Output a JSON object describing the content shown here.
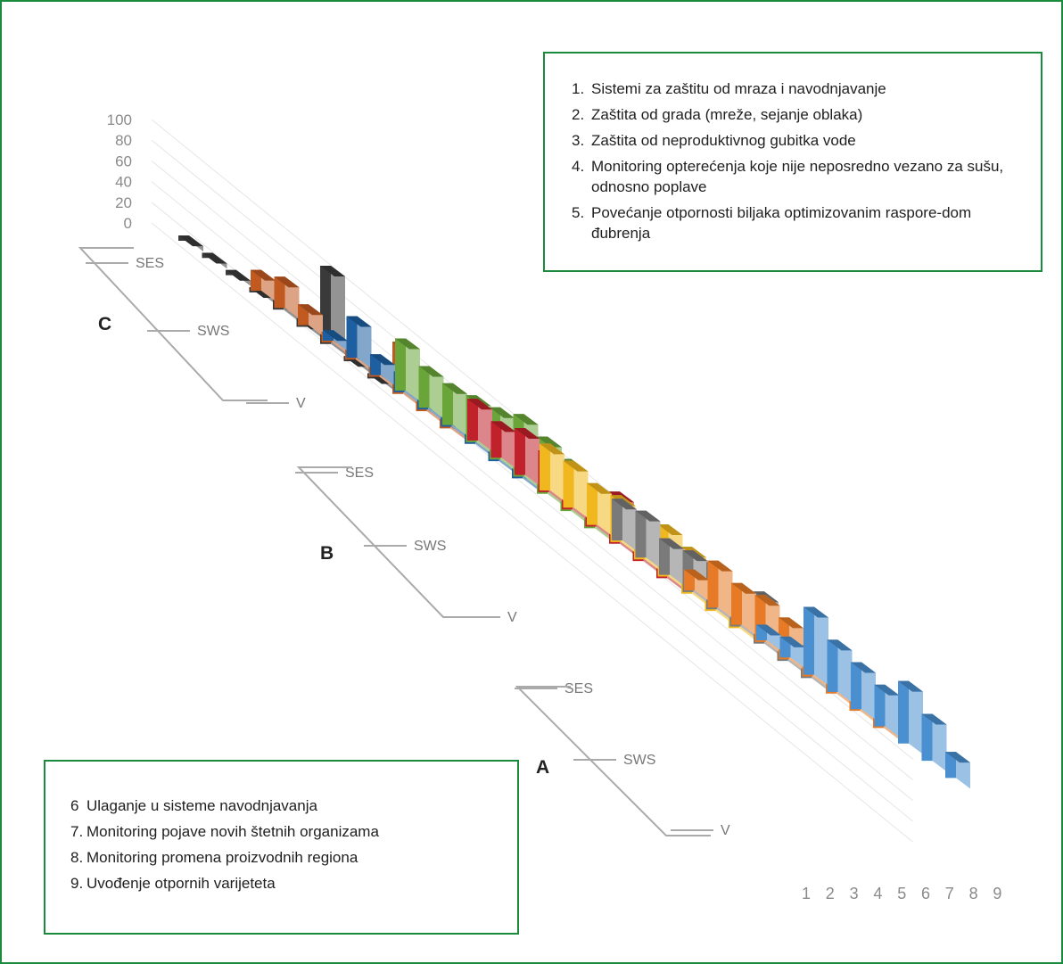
{
  "colors": {
    "frame": "#1a8a3c",
    "C_SES": "#3a3a3a",
    "C_SWS": "#c05a20",
    "C_V": "#1d5fa0",
    "B_SES": "#6aa53a",
    "B_SWS": "#c0212a",
    "B_V": "#f0b81e",
    "A_SES": "#7a7a7a",
    "A_SWS": "#e67a26",
    "A_V": "#4a8fd0"
  },
  "legend_top": [
    {
      "num": "1.",
      "text": "Sistemi za zaštitu od mraza i navodnjavanje"
    },
    {
      "num": "2.",
      "text": "Zaštita od grada (mreže, sejanje oblaka)"
    },
    {
      "num": "3.",
      "text": "Zaštita od neproduktivnog gubitka vode"
    },
    {
      "num": "4.",
      "text": "Monitoring opterećenja koje nije neposredno vezano za sušu, odnosno poplave"
    },
    {
      "num": "5.",
      "text": "Povećanje otpornosti biljaka optimizovanim raspore-dom đubrenja"
    }
  ],
  "legend_bottom": [
    {
      "num": "6",
      "text": "Ulaganje u sisteme navodnjavanja"
    },
    {
      "num": "7.",
      "text": "Monitoring pojave novih štetnih organizama"
    },
    {
      "num": "8.",
      "text": "Monitoring promena proizvodnih regiona"
    },
    {
      "num": "9.",
      "text": "Uvođenje otpornih varijeteta"
    }
  ],
  "chart_data": {
    "type": "bar",
    "style": "3d-stacked-rows",
    "y_ticks": [
      "100",
      "80",
      "60",
      "40",
      "20",
      "0"
    ],
    "ylim": [
      0,
      100
    ],
    "categories": [
      "1",
      "2",
      "3",
      "4",
      "5",
      "6",
      "7",
      "8",
      "9"
    ],
    "groups": [
      {
        "name": "C",
        "series": [
          {
            "name": "SES",
            "color_key": "C_SES",
            "values": [
              5,
              5,
              5,
              5,
              10,
              8,
              75,
              5,
              5
            ]
          },
          {
            "name": "SWS",
            "color_key": "C_SWS",
            "values": [
              20,
              30,
              20,
              10,
              10,
              10,
              50,
              10,
              10
            ]
          },
          {
            "name": "V",
            "color_key": "C_V",
            "values": [
              10,
              40,
              20,
              20,
              10,
              10,
              30,
              20,
              10
            ]
          }
        ]
      },
      {
        "name": "B",
        "series": [
          {
            "name": "SES",
            "color_key": "B_SES",
            "values": [
              50,
              40,
              40,
              45,
              50,
              60,
              55,
              50,
              40
            ]
          },
          {
            "name": "SWS",
            "color_key": "B_SWS",
            "values": [
              40,
              35,
              45,
              40,
              45,
              40,
              50,
              35,
              45
            ]
          },
          {
            "name": "V",
            "color_key": "B_V",
            "values": [
              45,
              45,
              40,
              45,
              40,
              50,
              45,
              45,
              40
            ]
          }
        ]
      },
      {
        "name": "A",
        "series": [
          {
            "name": "SES",
            "color_key": "A_SES",
            "values": [
              40,
              45,
              35,
              40,
              45,
              40,
              50,
              30,
              40
            ]
          },
          {
            "name": "SWS",
            "color_key": "A_SWS",
            "values": [
              20,
              45,
              40,
              45,
              40,
              30,
              45,
              35,
              40
            ]
          },
          {
            "name": "V",
            "color_key": "A_V",
            "values": [
              15,
              20,
              65,
              50,
              45,
              40,
              60,
              45,
              25
            ]
          }
        ]
      }
    ]
  }
}
